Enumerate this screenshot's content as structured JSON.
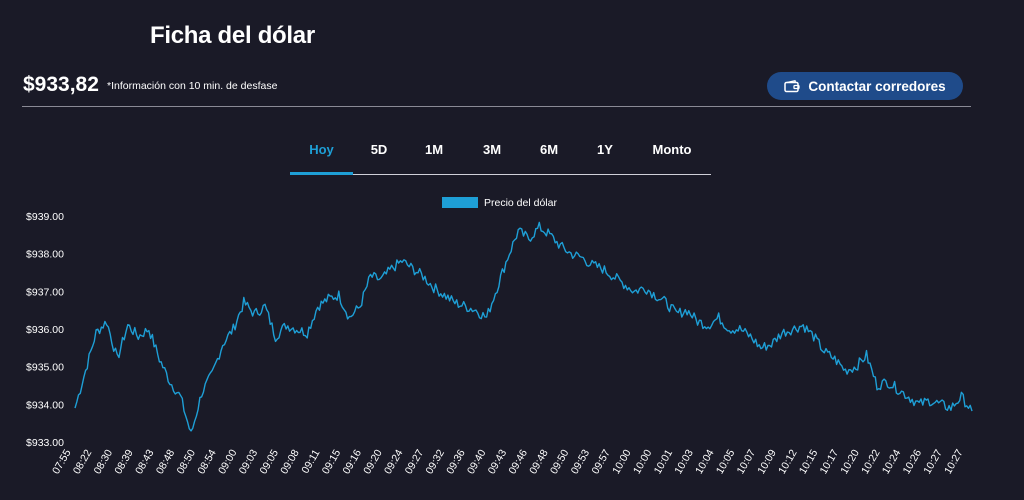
{
  "header": {
    "title": "Ficha del dólar",
    "price": "$933,82",
    "note": "*Información con 10 min. de desfase",
    "cta_label": "Contactar corredores",
    "cta_icon": "wallet-icon"
  },
  "tabs": [
    {
      "label": "Hoy",
      "active": true
    },
    {
      "label": "5D",
      "active": false
    },
    {
      "label": "1M",
      "active": false
    },
    {
      "label": "3M",
      "active": false
    },
    {
      "label": "6M",
      "active": false
    },
    {
      "label": "1Y",
      "active": false
    },
    {
      "label": "Monto",
      "active": false
    }
  ],
  "colors": {
    "accent": "#1e9fd6",
    "button": "#1f4b8a",
    "background": "#1a1a27"
  },
  "chart_data": {
    "type": "line",
    "legend": "Precio del dólar",
    "legend_position": "top-center",
    "grid": false,
    "ylim": [
      933,
      939
    ],
    "y_ticks": [
      "$933.00",
      "$934.00",
      "$935.00",
      "$936.00",
      "$937.00",
      "$938.00",
      "$939.00"
    ],
    "x_ticks": [
      "07:55",
      "08:22",
      "08:30",
      "08:39",
      "08:43",
      "08:48",
      "08:50",
      "08:54",
      "09:00",
      "09:03",
      "09:05",
      "09:08",
      "09:11",
      "09:15",
      "09:16",
      "09:20",
      "09:24",
      "09:27",
      "09:32",
      "09:36",
      "09:40",
      "09:43",
      "09:46",
      "09:48",
      "09:50",
      "09:53",
      "09:57",
      "10:00",
      "10:00",
      "10:01",
      "10:03",
      "10:04",
      "10:05",
      "10:07",
      "10:09",
      "10:12",
      "10:15",
      "10:17",
      "10:20",
      "10:22",
      "10:24",
      "10:26",
      "10:27",
      "10:27"
    ],
    "series": [
      {
        "name": "Precio del dólar",
        "values": [
          933.9,
          934.9,
          935.9,
          936.2,
          935.2,
          936.1,
          935.8,
          936.0,
          935.2,
          934.6,
          934.2,
          933.2,
          934.3,
          934.8,
          935.6,
          936.0,
          936.7,
          936.4,
          936.6,
          935.8,
          936.1,
          936.0,
          935.9,
          936.6,
          936.8,
          936.9,
          936.3,
          936.6,
          937.4,
          937.3,
          937.6,
          937.8,
          937.6,
          937.4,
          937.1,
          936.9,
          936.7,
          936.6,
          936.5,
          936.3,
          937.1,
          937.9,
          938.6,
          938.4,
          938.7,
          938.5,
          938.2,
          938.0,
          937.9,
          937.7,
          937.6,
          937.4,
          937.2,
          937.0,
          937.1,
          936.9,
          936.7,
          936.4,
          936.5,
          936.2,
          936.1,
          936.3,
          936.0,
          936.0,
          935.8,
          935.5,
          935.6,
          935.9,
          936.0,
          936.1,
          935.8,
          935.4,
          935.2,
          934.9,
          935.0,
          935.3,
          934.5,
          934.6,
          934.4,
          934.2,
          934.0,
          934.1,
          934.0,
          933.9,
          934.2,
          933.82
        ]
      }
    ]
  }
}
